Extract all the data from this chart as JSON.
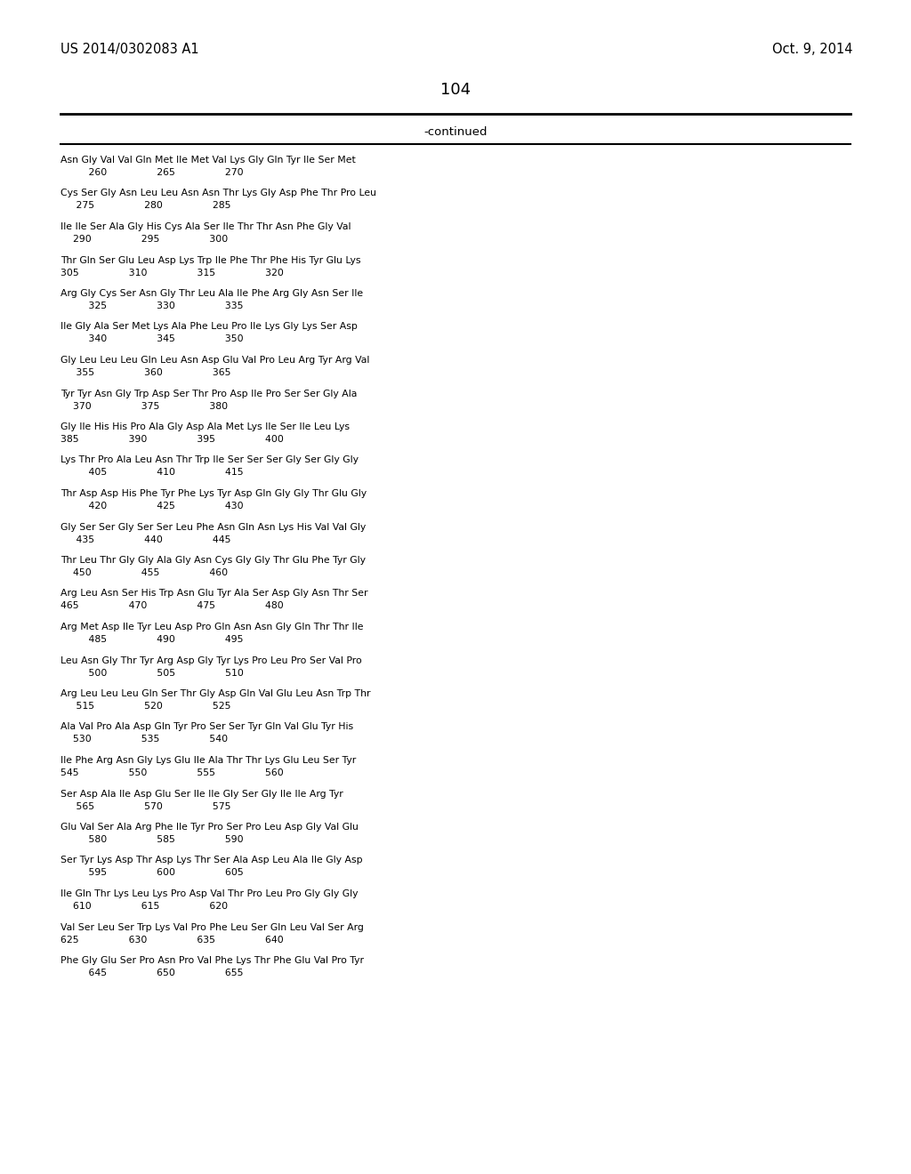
{
  "header_left": "US 2014/0302083 A1",
  "header_right": "Oct. 9, 2014",
  "page_number": "104",
  "continued_label": "-continued",
  "background_color": "#ffffff",
  "text_color": "#000000",
  "sequence_data": [
    [
      "Asn Gly Val Val Gln Met Ile Met Val Lys Gly Gln Tyr Ile Ser Met",
      "         260                265                270"
    ],
    [
      "Cys Ser Gly Asn Leu Leu Asn Asn Thr Lys Gly Asp Phe Thr Pro Leu",
      "     275                280                285"
    ],
    [
      "Ile Ile Ser Ala Gly His Cys Ala Ser Ile Thr Thr Asn Phe Gly Val",
      "    290                295                300"
    ],
    [
      "Thr Gln Ser Glu Leu Asp Lys Trp Ile Phe Thr Phe His Tyr Glu Lys",
      "305                310                315                320"
    ],
    [
      "Arg Gly Cys Ser Asn Gly Thr Leu Ala Ile Phe Arg Gly Asn Ser Ile",
      "         325                330                335"
    ],
    [
      "Ile Gly Ala Ser Met Lys Ala Phe Leu Pro Ile Lys Gly Lys Ser Asp",
      "         340                345                350"
    ],
    [
      "Gly Leu Leu Leu Gln Leu Asn Asp Glu Val Pro Leu Arg Tyr Arg Val",
      "     355                360                365"
    ],
    [
      "Tyr Tyr Asn Gly Trp Asp Ser Thr Pro Asp Ile Pro Ser Ser Gly Ala",
      "    370                375                380"
    ],
    [
      "Gly Ile His His Pro Ala Gly Asp Ala Met Lys Ile Ser Ile Leu Lys",
      "385                390                395                400"
    ],
    [
      "Lys Thr Pro Ala Leu Asn Thr Trp Ile Ser Ser Ser Gly Ser Gly Gly",
      "         405                410                415"
    ],
    [
      "Thr Asp Asp His Phe Tyr Phe Lys Tyr Asp Gln Gly Gly Thr Glu Gly",
      "         420                425                430"
    ],
    [
      "Gly Ser Ser Gly Ser Ser Leu Phe Asn Gln Asn Lys His Val Val Gly",
      "     435                440                445"
    ],
    [
      "Thr Leu Thr Gly Gly Ala Gly Asn Cys Gly Gly Thr Glu Phe Tyr Gly",
      "    450                455                460"
    ],
    [
      "Arg Leu Asn Ser His Trp Asn Glu Tyr Ala Ser Asp Gly Asn Thr Ser",
      "465                470                475                480"
    ],
    [
      "Arg Met Asp Ile Tyr Leu Asp Pro Gln Asn Asn Gly Gln Thr Thr Ile",
      "         485                490                495"
    ],
    [
      "Leu Asn Gly Thr Tyr Arg Asp Gly Tyr Lys Pro Leu Pro Ser Val Pro",
      "         500                505                510"
    ],
    [
      "Arg Leu Leu Leu Gln Ser Thr Gly Asp Gln Val Glu Leu Asn Trp Thr",
      "     515                520                525"
    ],
    [
      "Ala Val Pro Ala Asp Gln Tyr Pro Ser Ser Tyr Gln Val Glu Tyr His",
      "    530                535                540"
    ],
    [
      "Ile Phe Arg Asn Gly Lys Glu Ile Ala Thr Thr Lys Glu Leu Ser Tyr",
      "545                550                555                560"
    ],
    [
      "Ser Asp Ala Ile Asp Glu Ser Ile Ile Gly Ser Gly Ile Ile Arg Tyr",
      "     565                570                575"
    ],
    [
      "Glu Val Ser Ala Arg Phe Ile Tyr Pro Ser Pro Leu Asp Gly Val Glu",
      "         580                585                590"
    ],
    [
      "Ser Tyr Lys Asp Thr Asp Lys Thr Ser Ala Asp Leu Ala Ile Gly Asp",
      "         595                600                605"
    ],
    [
      "Ile Gln Thr Lys Leu Lys Pro Asp Val Thr Pro Leu Pro Gly Gly Gly",
      "    610                615                620"
    ],
    [
      "Val Ser Leu Ser Trp Lys Val Pro Phe Leu Ser Gln Leu Val Ser Arg",
      "625                630                635                640"
    ],
    [
      "Phe Gly Glu Ser Pro Asn Pro Val Phe Lys Thr Phe Glu Val Pro Tyr",
      "         645                650                655"
    ]
  ]
}
